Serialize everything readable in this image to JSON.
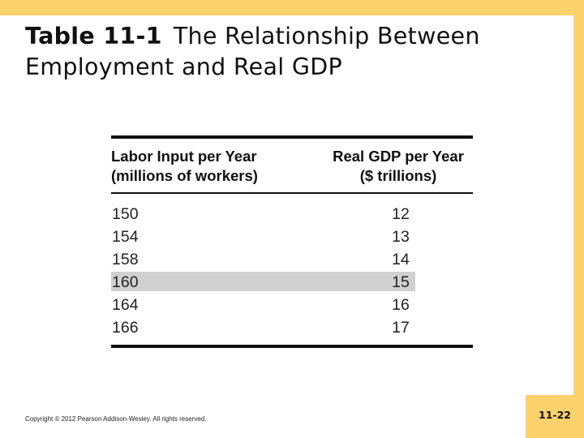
{
  "slide": {
    "table_number": "Table 11-1",
    "title": "The Relationship Between Employment and Real GDP",
    "copyright": "Copyright © 2012 Pearson Addison-Wesley. All rights reserved.",
    "page_number": "11-22",
    "accent_color": "#fdd16b",
    "highlight_color": "#d0d0d0"
  },
  "table": {
    "columns": [
      {
        "line1": "Labor Input per Year",
        "line2": "(millions of workers)"
      },
      {
        "line1": "Real GDP per Year",
        "line2": "($ trillions)"
      }
    ],
    "rows": [
      {
        "labor": "150",
        "gdp": "12",
        "highlighted": false
      },
      {
        "labor": "154",
        "gdp": "13",
        "highlighted": false
      },
      {
        "labor": "158",
        "gdp": "14",
        "highlighted": false
      },
      {
        "labor": "160",
        "gdp": "15",
        "highlighted": true
      },
      {
        "labor": "164",
        "gdp": "16",
        "highlighted": false
      },
      {
        "labor": "166",
        "gdp": "17",
        "highlighted": false
      }
    ]
  }
}
